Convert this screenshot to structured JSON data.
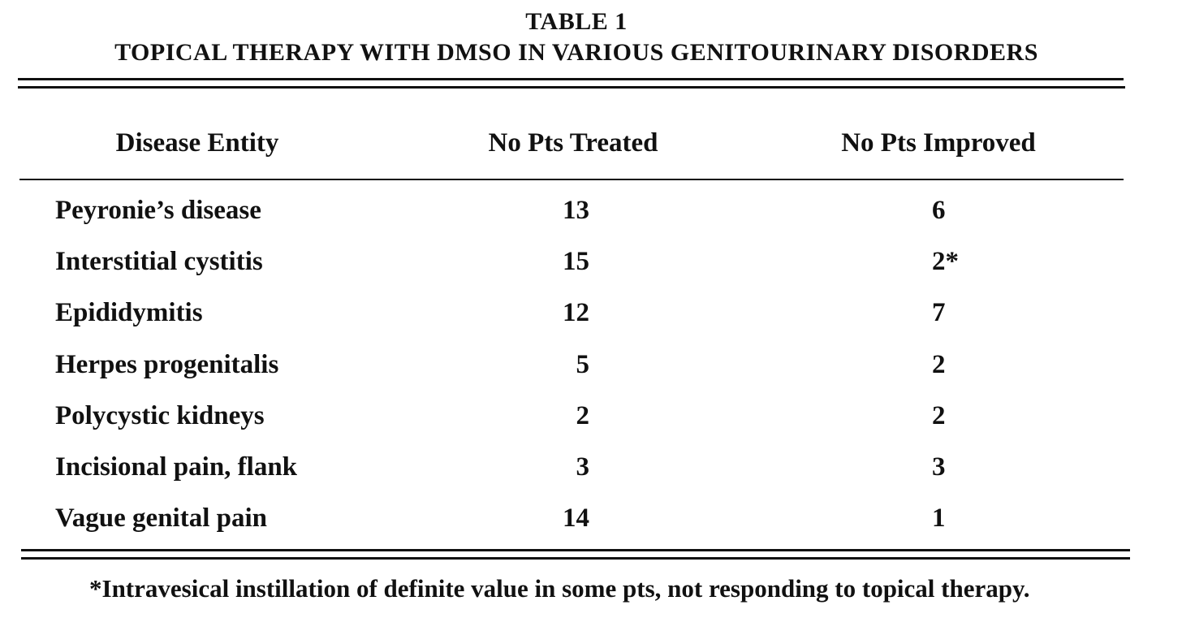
{
  "header": {
    "label": "TABLE 1",
    "title": "TOPICAL THERAPY WITH DMSO IN VARIOUS GENITOURINARY DISORDERS"
  },
  "table": {
    "columns": [
      "Disease Entity",
      "No Pts Treated",
      "No Pts Improved"
    ],
    "rows": [
      [
        "Peyronie’s disease",
        13,
        6
      ],
      [
        "Interstitial cystitis",
        15,
        "2*"
      ],
      [
        "Epididymitis",
        12,
        7
      ],
      [
        "Herpes progenitalis",
        5,
        2
      ],
      [
        "Polycystic kidneys",
        2,
        2
      ],
      [
        "Incisional pain, flank",
        3,
        3
      ],
      [
        "Vague genital pain",
        14,
        1
      ]
    ]
  },
  "footnote": "*Intravesical instillation of definite value in some pts, not responding to topical therapy."
}
